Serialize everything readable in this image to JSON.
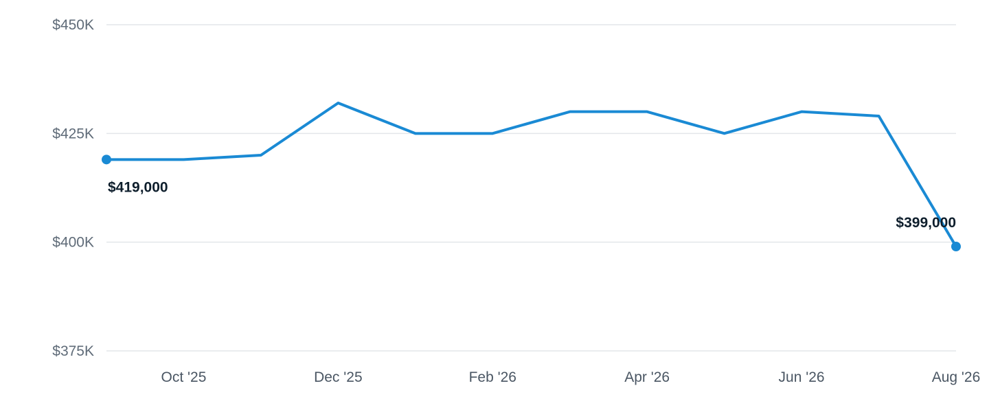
{
  "chart_data": {
    "type": "line",
    "x": [
      "Sep '25",
      "Oct '25",
      "Nov '25",
      "Dec '25",
      "Jan '26",
      "Feb '26",
      "Mar '26",
      "Apr '26",
      "May '26",
      "Jun '26",
      "Jul '26",
      "Aug '26"
    ],
    "x_tick_labels": [
      "Oct '25",
      "Dec '25",
      "Feb '26",
      "Apr '26",
      "Jun '26",
      "Aug '26"
    ],
    "series": [
      {
        "values": [
          419000,
          419000,
          420000,
          432000,
          425000,
          425000,
          430000,
          430000,
          425000,
          430000,
          429000,
          399000
        ],
        "color": "#1a8ad4"
      }
    ],
    "ylim": [
      375000,
      450000
    ],
    "y_ticks": [
      375000,
      400000,
      425000,
      450000
    ],
    "y_tick_labels": [
      "$375K",
      "$400K",
      "$425K",
      "$450K"
    ],
    "annotations": [
      {
        "index": 0,
        "label": "$419,000",
        "position": "below"
      },
      {
        "index": 11,
        "label": "$399,000",
        "position": "above"
      }
    ],
    "grid": true,
    "title": "",
    "xlabel": "",
    "ylabel": ""
  }
}
